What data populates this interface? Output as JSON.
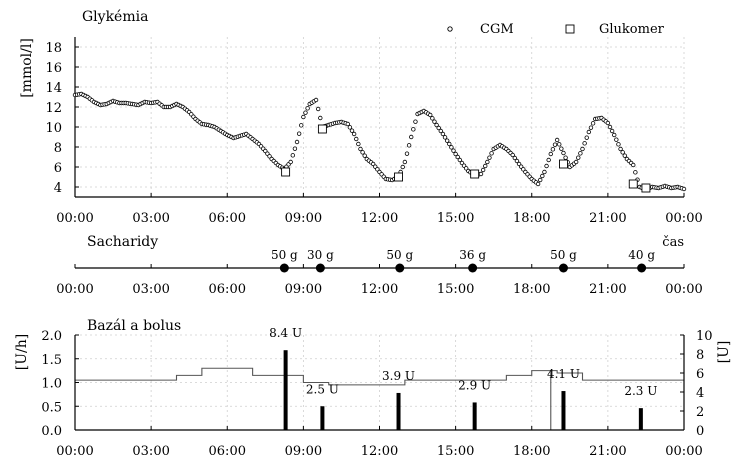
{
  "chart_data": [
    {
      "type": "scatter",
      "title": "Glykémia",
      "ylabel": "[mmol/l]",
      "xlabel": "",
      "ylim": [
        3,
        19
      ],
      "yticks": [
        4,
        6,
        8,
        10,
        12,
        14,
        16,
        18
      ],
      "xticks": [
        "00:00",
        "03:00",
        "06:00",
        "09:00",
        "12:00",
        "15:00",
        "18:00",
        "21:00",
        "00:00"
      ],
      "grid": true,
      "legend_position": "top-right",
      "series": [
        {
          "name": "CGM",
          "marker": "circle",
          "points": [
            [
              0.0,
              13.2
            ],
            [
              0.25,
              13.3
            ],
            [
              0.5,
              13.0
            ],
            [
              0.75,
              12.5
            ],
            [
              1.0,
              12.2
            ],
            [
              1.25,
              12.3
            ],
            [
              1.5,
              12.6
            ],
            [
              1.75,
              12.4
            ],
            [
              2.0,
              12.4
            ],
            [
              2.25,
              12.3
            ],
            [
              2.5,
              12.2
            ],
            [
              2.75,
              12.5
            ],
            [
              3.0,
              12.4
            ],
            [
              3.25,
              12.5
            ],
            [
              3.5,
              12.0
            ],
            [
              3.75,
              12.0
            ],
            [
              4.0,
              12.3
            ],
            [
              4.25,
              12.0
            ],
            [
              4.5,
              11.5
            ],
            [
              4.75,
              10.8
            ],
            [
              5.0,
              10.3
            ],
            [
              5.25,
              10.2
            ],
            [
              5.5,
              10.0
            ],
            [
              5.75,
              9.6
            ],
            [
              6.0,
              9.2
            ],
            [
              6.25,
              8.9
            ],
            [
              6.5,
              9.1
            ],
            [
              6.75,
              9.3
            ],
            [
              7.0,
              8.8
            ],
            [
              7.25,
              8.3
            ],
            [
              7.5,
              7.6
            ],
            [
              7.75,
              6.8
            ],
            [
              8.0,
              6.2
            ],
            [
              8.25,
              5.8
            ],
            [
              8.5,
              6.5
            ],
            [
              8.75,
              8.5
            ],
            [
              9.0,
              11.0
            ],
            [
              9.25,
              12.3
            ],
            [
              9.5,
              12.7
            ],
            [
              9.75,
              10.0
            ],
            [
              10.0,
              10.2
            ],
            [
              10.25,
              10.4
            ],
            [
              10.5,
              10.5
            ],
            [
              10.75,
              10.3
            ],
            [
              11.0,
              9.3
            ],
            [
              11.25,
              7.8
            ],
            [
              11.5,
              6.8
            ],
            [
              11.75,
              6.3
            ],
            [
              12.0,
              5.5
            ],
            [
              12.25,
              4.8
            ],
            [
              12.5,
              4.7
            ],
            [
              12.75,
              5.0
            ],
            [
              13.0,
              6.5
            ],
            [
              13.25,
              9.0
            ],
            [
              13.5,
              11.3
            ],
            [
              13.75,
              11.6
            ],
            [
              14.0,
              11.2
            ],
            [
              14.25,
              10.2
            ],
            [
              14.5,
              9.3
            ],
            [
              14.75,
              8.3
            ],
            [
              15.0,
              7.3
            ],
            [
              15.25,
              6.4
            ],
            [
              15.5,
              5.6
            ],
            [
              15.75,
              5.2
            ],
            [
              16.0,
              5.3
            ],
            [
              16.25,
              6.5
            ],
            [
              16.5,
              7.8
            ],
            [
              16.75,
              8.2
            ],
            [
              17.0,
              7.8
            ],
            [
              17.25,
              7.2
            ],
            [
              17.5,
              6.3
            ],
            [
              17.75,
              5.5
            ],
            [
              18.0,
              4.8
            ],
            [
              18.25,
              4.3
            ],
            [
              18.5,
              5.5
            ],
            [
              18.75,
              7.3
            ],
            [
              19.0,
              8.7
            ],
            [
              19.25,
              7.4
            ],
            [
              19.5,
              6.0
            ],
            [
              19.75,
              6.5
            ],
            [
              20.0,
              7.8
            ],
            [
              20.25,
              9.5
            ],
            [
              20.5,
              10.8
            ],
            [
              20.75,
              10.9
            ],
            [
              21.0,
              10.4
            ],
            [
              21.25,
              9.2
            ],
            [
              21.5,
              7.8
            ],
            [
              21.75,
              6.8
            ],
            [
              22.0,
              6.2
            ],
            [
              22.25,
              4.0
            ],
            [
              22.5,
              3.8
            ],
            [
              22.75,
              4.0
            ],
            [
              23.0,
              3.9
            ],
            [
              23.25,
              4.1
            ],
            [
              23.5,
              3.9
            ],
            [
              23.75,
              4.0
            ],
            [
              24.0,
              3.8
            ]
          ]
        },
        {
          "name": "Glukomer",
          "marker": "square",
          "points": [
            [
              8.3,
              5.5
            ],
            [
              9.75,
              9.8
            ],
            [
              12.75,
              5.0
            ],
            [
              15.75,
              5.3
            ],
            [
              19.25,
              6.3
            ],
            [
              22.0,
              4.3
            ],
            [
              22.5,
              3.9
            ]
          ]
        }
      ]
    },
    {
      "type": "scatter",
      "title": "Sacharidy",
      "xlabel": "čas",
      "xticks": [
        "00:00",
        "03:00",
        "06:00",
        "09:00",
        "12:00",
        "15:00",
        "18:00",
        "21:00",
        "00:00"
      ],
      "events": [
        {
          "x": 8.25,
          "label": "50 g"
        },
        {
          "x": 9.67,
          "label": "30 g"
        },
        {
          "x": 12.8,
          "label": "50 g"
        },
        {
          "x": 15.67,
          "label": "36 g"
        },
        {
          "x": 19.25,
          "label": "50 g"
        },
        {
          "x": 22.33,
          "label": "40 g"
        }
      ]
    },
    {
      "type": "bar",
      "title": "Bazál a bolus",
      "ylabel": "[U/h]",
      "y2label": "[U]",
      "ylim": [
        0,
        2.0
      ],
      "y2lim": [
        0,
        10
      ],
      "yticks": [
        "0.0",
        "0.5",
        "1.0",
        "1.5",
        "2.0"
      ],
      "y2ticks": [
        "0",
        "2",
        "4",
        "6",
        "8",
        "10"
      ],
      "xticks": [
        "00:00",
        "03:00",
        "06:00",
        "09:00",
        "12:00",
        "15:00",
        "18:00",
        "21:00",
        "00:00"
      ],
      "grid": true,
      "basal_steps": [
        {
          "from": 0,
          "to": 4,
          "rate": 1.05
        },
        {
          "from": 4,
          "to": 5,
          "rate": 1.15
        },
        {
          "from": 5,
          "to": 7,
          "rate": 1.3
        },
        {
          "from": 7,
          "to": 9,
          "rate": 1.15
        },
        {
          "from": 9,
          "to": 10,
          "rate": 1.0
        },
        {
          "from": 10,
          "to": 13,
          "rate": 0.95
        },
        {
          "from": 13,
          "to": 17,
          "rate": 1.05
        },
        {
          "from": 17,
          "to": 18,
          "rate": 1.15
        },
        {
          "from": 18,
          "to": 19,
          "rate": 1.25
        },
        {
          "from": 19,
          "to": 20,
          "rate": 1.2
        },
        {
          "from": 20,
          "to": 24,
          "rate": 1.05
        }
      ],
      "basal_dip_at": 18.75,
      "boluses": [
        {
          "x": 8.3,
          "units": 8.4,
          "label": "8.4 U"
        },
        {
          "x": 9.75,
          "units": 2.5,
          "label": "2.5 U"
        },
        {
          "x": 12.75,
          "units": 3.9,
          "label": "3.9 U"
        },
        {
          "x": 15.75,
          "units": 2.9,
          "label": "2.9 U"
        },
        {
          "x": 19.25,
          "units": 4.1,
          "label": "4.1 U"
        },
        {
          "x": 22.3,
          "units": 2.3,
          "label": "2.3 U"
        }
      ]
    }
  ]
}
